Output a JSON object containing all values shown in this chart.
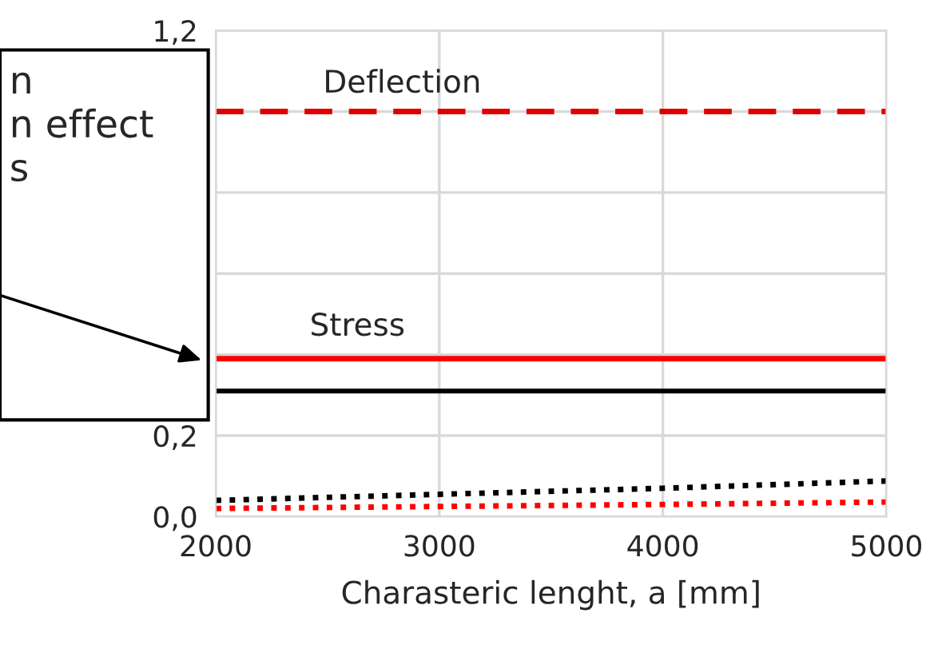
{
  "chart_data": {
    "type": "line",
    "xlabel": "Charasteric lenght, a [mm]",
    "x": [
      2000,
      3000,
      4000,
      5000
    ],
    "series": [
      {
        "color": "#e00000",
        "values": [
          1.0,
          1.0,
          1.0,
          1.0
        ],
        "line_style": "dashed"
      },
      {
        "color": "#ff0000",
        "values": [
          0.39,
          0.39,
          0.39,
          0.39
        ],
        "line_style": "solid"
      },
      {
        "color": "#000000",
        "values": [
          0.31,
          0.31,
          0.31,
          0.31
        ],
        "line_style": "solid"
      },
      {
        "color": "#000000",
        "values": [
          0.04,
          0.055,
          0.07,
          0.088
        ],
        "line_style": "dotted"
      },
      {
        "color": "#ff0000",
        "values": [
          0.02,
          0.025,
          0.03,
          0.036
        ],
        "line_style": "dotted"
      }
    ],
    "xlim": [
      2000,
      5000
    ],
    "xticks": [
      2000,
      3000,
      4000,
      5000
    ],
    "ylim": [
      0,
      1.2
    ],
    "yticks": [
      {
        "value": 0,
        "label": "0,0"
      },
      {
        "value": 0.2,
        "label": "0,2"
      },
      {
        "value": 0.4,
        "label": null
      },
      {
        "value": 0.6,
        "label": null
      },
      {
        "value": 0.8,
        "label": null
      },
      {
        "value": 1.0,
        "label": null
      },
      {
        "value": 1.2,
        "label": "1,2"
      }
    ],
    "grid": true,
    "legend": false,
    "annotations": [
      "Deflection",
      "Stress",
      "n\nn effect\ns"
    ]
  }
}
